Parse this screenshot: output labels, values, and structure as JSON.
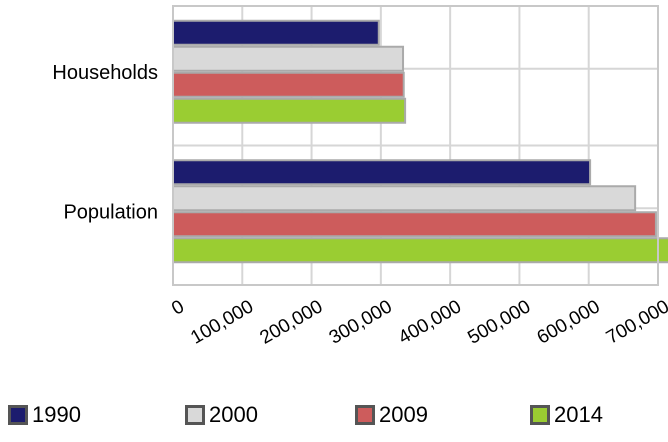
{
  "chart_data": {
    "type": "bar",
    "orientation": "horizontal",
    "categories": [
      "Households",
      "Population"
    ],
    "series": [
      {
        "name": "1990",
        "color": "#1c1c6e",
        "values": [
          297000,
          602000
        ]
      },
      {
        "name": "2000",
        "color": "#d9d9d9",
        "values": [
          332000,
          667000
        ]
      },
      {
        "name": "2009",
        "color": "#cd5c5c",
        "values": [
          333000,
          697000
        ]
      },
      {
        "name": "2014",
        "color": "#9acd32",
        "values": [
          335000,
          720000
        ]
      }
    ],
    "xticks": [
      "0",
      "100,000",
      "200,000",
      "300,000",
      "400,000",
      "500,000",
      "600,000",
      "700,000"
    ],
    "xlim": [
      0,
      700000
    ],
    "grid": true,
    "legend_position": "bottom"
  }
}
